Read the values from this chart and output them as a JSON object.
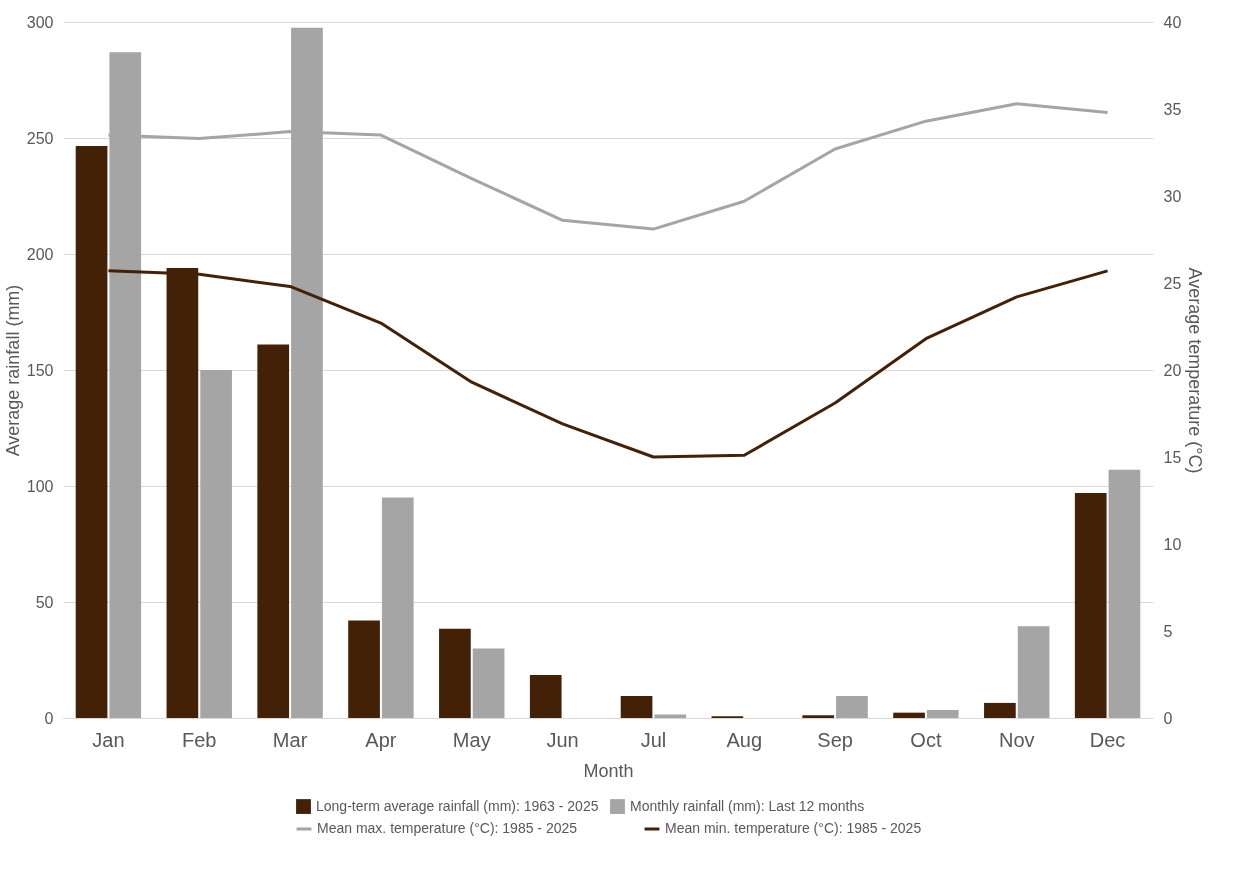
{
  "chart_data": {
    "type": "bar",
    "xlabel": "Month",
    "ylabel": "Average rainfall (mm)",
    "y2label": "Average temperature (°C)",
    "categories": [
      "Jan",
      "Feb",
      "Mar",
      "Apr",
      "May",
      "Jun",
      "Jul",
      "Aug",
      "Sep",
      "Oct",
      "Nov",
      "Dec"
    ],
    "series": [
      {
        "name": "Long-term average rainfall (mm): 1963 - 2025",
        "color": "#432106",
        "values": [
          246.5,
          194,
          161,
          42,
          38.5,
          18.5,
          9.5,
          0.8,
          1.2,
          2.3,
          6.5,
          97
        ]
      },
      {
        "name": "Monthly rainfall (mm): Last 12 months",
        "color": "#a5a5a5",
        "values": [
          287,
          150,
          297.5,
          95,
          30,
          0,
          1.5,
          0,
          9.5,
          3.5,
          39.5,
          107
        ]
      },
      {
        "name": "Mean max. temperature (°C): 1985 - 2025",
        "type": "line",
        "axis": "y2",
        "color": "#a5a5a5",
        "values": [
          33.5,
          33.3,
          33.7,
          33.5,
          31,
          28.6,
          28.1,
          29.7,
          32.7,
          34.3,
          35.3,
          34.8
        ]
      },
      {
        "name": "Mean min. temperature (°C): 1985 - 2025",
        "type": "line",
        "axis": "y2",
        "color": "#432106",
        "values": [
          25.7,
          25.5,
          24.8,
          22.7,
          19.3,
          16.9,
          15.0,
          15.1,
          18.1,
          21.8,
          24.2,
          25.7
        ]
      }
    ],
    "ylim": [
      0,
      300
    ],
    "yticks": [
      0,
      50,
      100,
      150,
      200,
      250,
      300
    ],
    "y2lim": [
      0,
      40
    ],
    "y2ticks": [
      0,
      5,
      10,
      15,
      20,
      25,
      30,
      35,
      40
    ],
    "grid": "y",
    "legend": "bottom",
    "marker": "none",
    "line_style": "solid"
  }
}
